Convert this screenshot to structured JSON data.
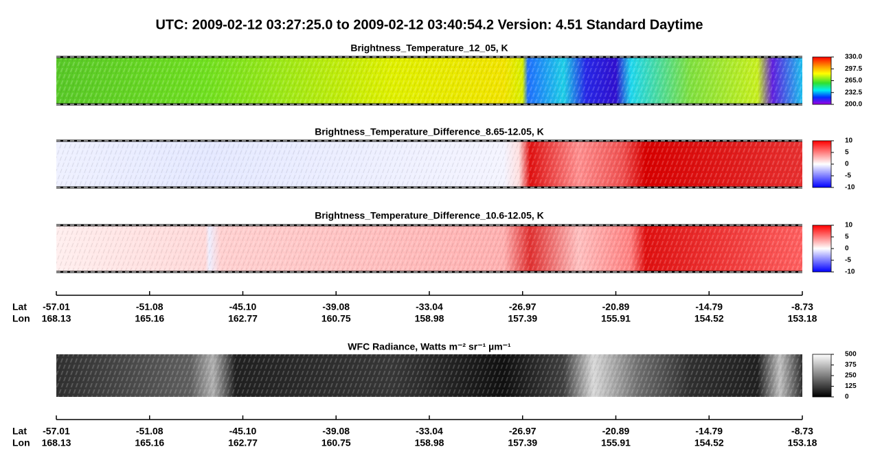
{
  "title": "UTC:  2009-02-12   03:27:25.0  to  2009-02-12   03:40:54.2    Version: 4.51  Standard Daytime",
  "chart_data": [
    {
      "type": "heatmap",
      "title": "Brightness_Temperature_12_05, K",
      "clim": [
        200,
        330
      ],
      "ticks": [
        {
          "value": 330,
          "label": "330.0"
        },
        {
          "value": 297.5,
          "label": "297.5"
        },
        {
          "value": 265,
          "label": "265.0"
        },
        {
          "value": 232.5,
          "label": "232.5"
        },
        {
          "value": 200,
          "label": "200.0"
        }
      ]
    },
    {
      "type": "heatmap",
      "title": "Brightness_Temperature_Difference_8.65-12.05, K",
      "clim": [
        -10,
        10
      ],
      "ticks": [
        10,
        5,
        0,
        -5,
        -10
      ]
    },
    {
      "type": "heatmap",
      "title": "Brightness_Temperature_Difference_10.6-12.05, K",
      "clim": [
        -10,
        10
      ],
      "ticks": [
        10,
        5,
        0,
        -5,
        -10
      ]
    },
    {
      "type": "heatmap",
      "title": "WFC Radiance, Watts m⁻² sr⁻¹ µm⁻¹",
      "clim": [
        0,
        500
      ],
      "ticks": [
        500,
        375,
        250,
        125,
        0
      ]
    }
  ],
  "axes": [
    {
      "lat_label": "Lat",
      "lon_label": "Lon",
      "lat": [
        -57.01,
        -51.08,
        {
          "value": -45.1,
          "label": "-45.10"
        },
        -39.08,
        -33.04,
        -26.97,
        -20.89,
        -14.79,
        -8.73
      ],
      "lon": [
        168.13,
        165.16,
        162.77,
        160.75,
        158.98,
        157.39,
        155.91,
        154.52,
        153.18
      ]
    },
    {
      "lat_label": "Lat",
      "lon_label": "Lon",
      "lat": [
        -57.01,
        -51.08,
        {
          "value": -45.1,
          "label": "-45.10"
        },
        -39.08,
        -33.04,
        -26.97,
        -20.89,
        -14.79,
        -8.73
      ],
      "lon": [
        168.13,
        165.16,
        162.77,
        160.75,
        158.98,
        157.39,
        155.91,
        154.52,
        153.18
      ]
    }
  ]
}
